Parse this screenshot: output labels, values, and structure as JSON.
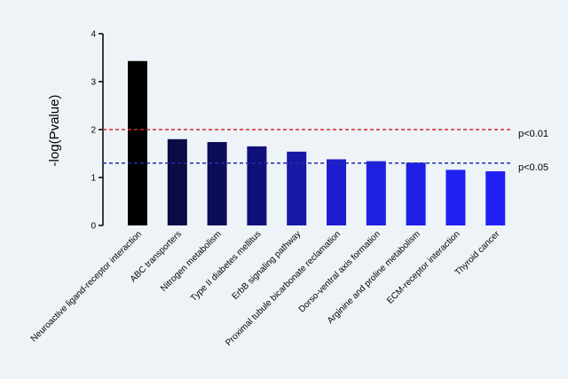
{
  "chart_data": {
    "type": "bar",
    "title": "",
    "xlabel": "",
    "ylabel": "-log(Pvalue)",
    "ylim": [
      0,
      4
    ],
    "yticks": [
      "0",
      "1",
      "2",
      "3",
      "4"
    ],
    "grid": false,
    "categories": [
      "Neuroactive ligand-receptor interaction",
      "ABC transporters",
      "Nitrogen metabolism",
      "Type II diabetes mellitus",
      "ErbB signaling pathway",
      "Proximal tubule bicarbonate reclamation",
      "Dorso-ventral axis formation",
      "Arginine and proline metabolism",
      "ECM-receptor interaction",
      "Thyroid cancer"
    ],
    "values": [
      3.43,
      1.8,
      1.74,
      1.65,
      1.54,
      1.38,
      1.34,
      1.31,
      1.16,
      1.13
    ],
    "bar_colors": [
      "#000000",
      "#0b0b45",
      "#0c0c58",
      "#10107a",
      "#1818a6",
      "#1e1ed0",
      "#1f1fe0",
      "#1f1fe6",
      "#2020f0",
      "#2121f6"
    ],
    "thresholds": [
      {
        "label": "p<0.01",
        "value": 2.0,
        "color": "#d62728"
      },
      {
        "label": "p<0.05",
        "value": 1.3,
        "color": "#1f2fa0"
      }
    ]
  }
}
